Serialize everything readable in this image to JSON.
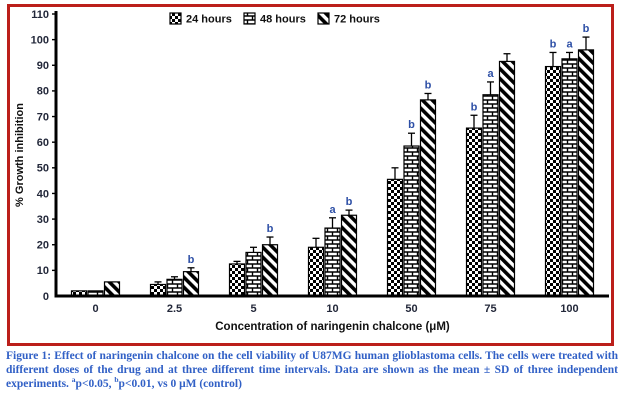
{
  "colors": {
    "frame_border": "#bb1f1a",
    "caption_text": "#3160c6",
    "sig_label": "#2d4fa6",
    "axis_text": "#23283a",
    "chart_text": "#111111",
    "bar_fill_bg": "#ffffff",
    "bar_stroke": "#000000"
  },
  "chart_data": {
    "type": "bar",
    "title": "",
    "xlabel": "Concentration of naringenin chalcone (μM)",
    "ylabel": "% Growth inhibition",
    "ylim": [
      0,
      110
    ],
    "ytick_step": 10,
    "grid": false,
    "legend_position": "top",
    "error_bars": "SD upper whiskers",
    "categories": [
      "0",
      "2.5",
      "5",
      "10",
      "50",
      "75",
      "100"
    ],
    "series": [
      {
        "name": "24 hours",
        "pattern": "checker",
        "values": [
          2,
          4.5,
          12.5,
          19,
          45.5,
          65.5,
          89.5
        ],
        "errors": [
          0,
          1,
          1,
          3.5,
          4.5,
          5,
          5.5
        ],
        "sig": [
          "",
          "",
          "",
          "",
          "",
          "b",
          "b"
        ]
      },
      {
        "name": "48 hours",
        "pattern": "brick",
        "values": [
          2,
          6.5,
          17,
          26.5,
          58.5,
          78.5,
          92.5
        ],
        "errors": [
          0,
          1,
          2,
          4,
          5,
          5,
          2.5
        ],
        "sig": [
          "",
          "",
          "",
          "a",
          "b",
          "a",
          "a"
        ]
      },
      {
        "name": "72 hours",
        "pattern": "diagonal",
        "values": [
          5.5,
          9.5,
          20,
          31.5,
          76.5,
          91.5,
          96
        ],
        "errors": [
          0,
          1.5,
          3,
          2,
          2.5,
          3,
          5
        ],
        "sig": [
          "",
          "b",
          "b",
          "b",
          "b",
          "",
          "b"
        ]
      }
    ]
  },
  "caption": {
    "text": "Figure 1: Effect of naringenin chalcone on the cell viability of U87MG human glioblastoma cells. The cells were treated with different doses of the drug and at three different time intervals. Data are shown as the mean ± SD of three independent experiments.",
    "sup_a": "a",
    "note_a": "p<0.05, ",
    "sup_b": "b",
    "note_b": "p<0.01, vs 0 μM (control)"
  }
}
